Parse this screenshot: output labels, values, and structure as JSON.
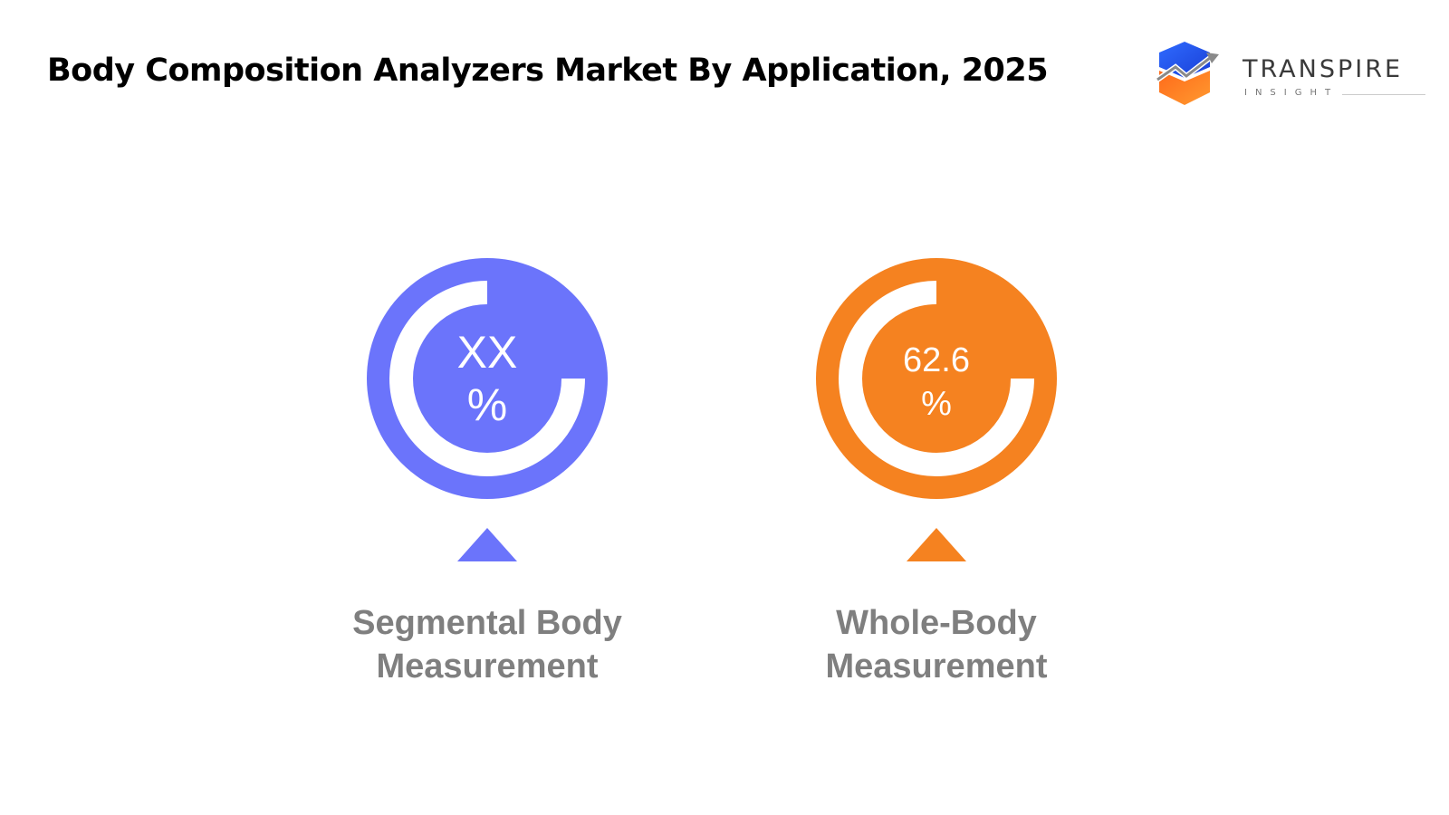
{
  "title": "Body Composition Analyzers Market By Application, 2025",
  "logo": {
    "name": "TRANSPIRE",
    "subtitle": "INSIGHT"
  },
  "chart_data": {
    "type": "pie",
    "title": "Body Composition Analyzers Market By Application, 2025",
    "items": [
      {
        "value_label": "XX",
        "unit": "%",
        "label_lines": [
          "Segmental Body",
          "Measurement"
        ],
        "color": "#6b74fb",
        "fraction": 0.75
      },
      {
        "value_label": "62.6",
        "unit": "%",
        "label_lines": [
          "Whole-Body",
          "Measurement"
        ],
        "color": "#f58220",
        "fraction": 0.75
      }
    ]
  }
}
